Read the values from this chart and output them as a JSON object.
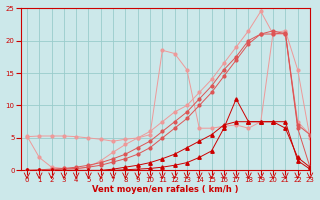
{
  "x": [
    0,
    1,
    2,
    3,
    4,
    5,
    6,
    7,
    8,
    9,
    10,
    11,
    12,
    13,
    14,
    15,
    16,
    17,
    18,
    19,
    20,
    21,
    22,
    23
  ],
  "line_light1": [
    5.3,
    2.0,
    0.5,
    0.3,
    0.2,
    0.5,
    1.5,
    2.8,
    4.0,
    5.0,
    6.0,
    7.5,
    9.0,
    10.0,
    12.0,
    14.0,
    16.5,
    19.0,
    21.5,
    24.5,
    21.0,
    21.0,
    7.5,
    5.5
  ],
  "line_light2": [
    5.2,
    5.3,
    5.3,
    5.3,
    5.2,
    5.0,
    4.8,
    4.5,
    4.8,
    5.0,
    5.5,
    18.5,
    18.0,
    15.5,
    6.5,
    6.5,
    6.8,
    7.0,
    6.5,
    7.5,
    21.2,
    21.5,
    15.5,
    5.0
  ],
  "line_mid1": [
    0.0,
    0.1,
    0.2,
    0.3,
    0.5,
    0.8,
    1.2,
    1.8,
    2.5,
    3.5,
    4.5,
    6.0,
    7.5,
    9.0,
    11.0,
    13.0,
    15.5,
    17.5,
    20.0,
    21.0,
    21.0,
    21.2,
    7.0,
    5.5
  ],
  "line_mid2": [
    0.0,
    0.0,
    0.1,
    0.2,
    0.3,
    0.5,
    0.8,
    1.3,
    1.8,
    2.5,
    3.5,
    5.0,
    6.5,
    8.0,
    10.0,
    12.0,
    14.5,
    17.0,
    19.5,
    21.0,
    21.5,
    21.0,
    6.5,
    0.5
  ],
  "line_dark1": [
    0.0,
    0.0,
    0.0,
    0.0,
    0.0,
    0.0,
    0.0,
    0.2,
    0.5,
    0.8,
    1.2,
    1.8,
    2.5,
    3.5,
    4.5,
    5.5,
    7.0,
    7.5,
    7.5,
    7.5,
    7.5,
    6.5,
    2.0,
    0.5
  ],
  "line_dark2": [
    0.0,
    0.0,
    0.0,
    0.0,
    0.0,
    0.0,
    0.0,
    0.0,
    0.1,
    0.2,
    0.3,
    0.5,
    0.8,
    1.2,
    2.0,
    3.0,
    6.5,
    11.0,
    7.5,
    7.5,
    7.5,
    7.5,
    1.5,
    0.2
  ],
  "bg_color": "#cce8ea",
  "grid_color": "#99cccc",
  "line_color_dark": "#cc0000",
  "line_color_mid": "#dd5555",
  "line_color_light": "#ee9999",
  "xlabel": "Vent moyen/en rafales ( km/h )",
  "xlim": [
    -0.5,
    23
  ],
  "ylim": [
    0,
    25
  ],
  "yticks": [
    0,
    5,
    10,
    15,
    20,
    25
  ],
  "xticks": [
    0,
    1,
    2,
    3,
    4,
    5,
    6,
    7,
    8,
    9,
    10,
    11,
    12,
    13,
    14,
    15,
    16,
    17,
    18,
    19,
    20,
    21,
    22,
    23
  ]
}
